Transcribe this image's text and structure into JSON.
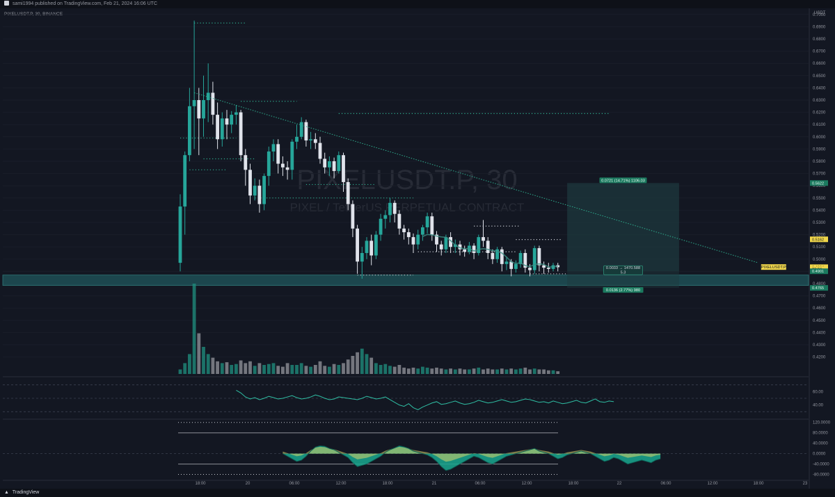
{
  "header": {
    "publisher_text": "sami1994 published on TradingView.com, Feb 21, 2024 16:06 UTC",
    "symbol_line": "PIXELUSDT.P, 30, BINANCE"
  },
  "footer": {
    "brand": "TradingView"
  },
  "watermark": {
    "symbol": "PIXELUSDT.P, 30",
    "description": "PIXEL / TetherUS PERPETUAL CONTRACT"
  },
  "chart_data": {
    "type": "candlestick",
    "price_axis": {
      "unit": "USDT",
      "range": [
        0.405,
        0.705
      ],
      "ticks": [
        0.42,
        0.43,
        0.44,
        0.45,
        0.46,
        0.47,
        0.48,
        0.49,
        0.5,
        0.51,
        0.52,
        0.53,
        0.54,
        0.55,
        0.56,
        0.57,
        0.58,
        0.59,
        0.6,
        0.61,
        0.62,
        0.63,
        0.64,
        0.65,
        0.66,
        0.67,
        0.68,
        0.69,
        0.7
      ]
    },
    "time_axis": {
      "labels": [
        "18:00",
        "20",
        "06:00",
        "12:00",
        "18:00",
        "21",
        "06:00",
        "12:00",
        "18:00",
        "22",
        "06:00",
        "12:00",
        "18:00",
        "23"
      ]
    },
    "candles": [
      [
        0.497,
        0.543,
        0.49,
        0.553
      ],
      [
        0.543,
        0.585,
        0.52,
        0.588
      ],
      [
        0.585,
        0.625,
        0.58,
        0.64
      ],
      [
        0.625,
        0.63,
        0.59,
        0.695
      ],
      [
        0.63,
        0.615,
        0.585,
        0.64
      ],
      [
        0.615,
        0.63,
        0.6,
        0.65
      ],
      [
        0.63,
        0.636,
        0.612,
        0.66
      ],
      [
        0.636,
        0.618,
        0.61,
        0.645
      ],
      [
        0.618,
        0.598,
        0.59,
        0.628
      ],
      [
        0.598,
        0.615,
        0.592,
        0.62
      ],
      [
        0.615,
        0.61,
        0.598,
        0.622
      ],
      [
        0.61,
        0.618,
        0.603,
        0.621
      ],
      [
        0.618,
        0.62,
        0.61,
        0.626
      ],
      [
        0.62,
        0.585,
        0.58,
        0.622
      ],
      [
        0.585,
        0.573,
        0.56,
        0.59
      ],
      [
        0.573,
        0.552,
        0.545,
        0.578
      ],
      [
        0.552,
        0.56,
        0.548,
        0.566
      ],
      [
        0.56,
        0.545,
        0.538,
        0.565
      ],
      [
        0.545,
        0.568,
        0.54,
        0.57
      ],
      [
        0.568,
        0.588,
        0.56,
        0.592
      ],
      [
        0.588,
        0.594,
        0.58,
        0.598
      ],
      [
        0.594,
        0.578,
        0.57,
        0.598
      ],
      [
        0.578,
        0.575,
        0.568,
        0.584
      ],
      [
        0.575,
        0.573,
        0.565,
        0.58
      ],
      [
        0.573,
        0.596,
        0.565,
        0.598
      ],
      [
        0.596,
        0.6,
        0.59,
        0.61
      ],
      [
        0.6,
        0.612,
        0.598,
        0.616
      ],
      [
        0.612,
        0.597,
        0.592,
        0.614
      ],
      [
        0.597,
        0.598,
        0.59,
        0.604
      ],
      [
        0.598,
        0.595,
        0.59,
        0.603
      ],
      [
        0.595,
        0.582,
        0.578,
        0.6
      ],
      [
        0.582,
        0.575,
        0.57,
        0.587
      ],
      [
        0.575,
        0.58,
        0.568,
        0.584
      ],
      [
        0.58,
        0.572,
        0.566,
        0.583
      ],
      [
        0.572,
        0.585,
        0.57,
        0.588
      ],
      [
        0.585,
        0.563,
        0.555,
        0.587
      ],
      [
        0.563,
        0.545,
        0.54,
        0.566
      ],
      [
        0.545,
        0.525,
        0.518,
        0.548
      ],
      [
        0.525,
        0.498,
        0.488,
        0.528
      ],
      [
        0.498,
        0.505,
        0.484,
        0.51
      ],
      [
        0.505,
        0.515,
        0.5,
        0.518
      ],
      [
        0.515,
        0.503,
        0.495,
        0.52
      ],
      [
        0.503,
        0.52,
        0.5,
        0.523
      ],
      [
        0.52,
        0.533,
        0.515,
        0.537
      ],
      [
        0.533,
        0.536,
        0.525,
        0.54
      ],
      [
        0.536,
        0.546,
        0.53,
        0.55
      ],
      [
        0.546,
        0.537,
        0.53,
        0.548
      ],
      [
        0.537,
        0.525,
        0.52,
        0.54
      ],
      [
        0.525,
        0.522,
        0.516,
        0.528
      ],
      [
        0.522,
        0.518,
        0.512,
        0.525
      ],
      [
        0.518,
        0.512,
        0.505,
        0.521
      ],
      [
        0.512,
        0.52,
        0.508,
        0.524
      ],
      [
        0.52,
        0.526,
        0.515,
        0.528
      ],
      [
        0.526,
        0.535,
        0.521,
        0.538
      ],
      [
        0.535,
        0.52,
        0.515,
        0.538
      ],
      [
        0.52,
        0.512,
        0.506,
        0.523
      ],
      [
        0.512,
        0.508,
        0.503,
        0.515
      ],
      [
        0.508,
        0.518,
        0.505,
        0.52
      ],
      [
        0.518,
        0.51,
        0.505,
        0.522
      ],
      [
        0.51,
        0.512,
        0.505,
        0.516
      ],
      [
        0.512,
        0.508,
        0.503,
        0.515
      ],
      [
        0.508,
        0.506,
        0.502,
        0.511
      ],
      [
        0.506,
        0.511,
        0.504,
        0.514
      ],
      [
        0.511,
        0.505,
        0.5,
        0.513
      ],
      [
        0.505,
        0.518,
        0.503,
        0.52
      ],
      [
        0.518,
        0.515,
        0.51,
        0.532
      ],
      [
        0.515,
        0.505,
        0.5,
        0.518
      ],
      [
        0.505,
        0.5,
        0.496,
        0.508
      ],
      [
        0.5,
        0.508,
        0.497,
        0.51
      ],
      [
        0.508,
        0.496,
        0.49,
        0.51
      ],
      [
        0.496,
        0.498,
        0.491,
        0.502
      ],
      [
        0.498,
        0.492,
        0.486,
        0.5
      ],
      [
        0.492,
        0.496,
        0.489,
        0.499
      ],
      [
        0.496,
        0.505,
        0.493,
        0.507
      ],
      [
        0.505,
        0.493,
        0.489,
        0.508
      ],
      [
        0.493,
        0.491,
        0.486,
        0.496
      ],
      [
        0.491,
        0.509,
        0.488,
        0.511
      ],
      [
        0.509,
        0.495,
        0.49,
        0.511
      ],
      [
        0.495,
        0.493,
        0.488,
        0.498
      ],
      [
        0.493,
        0.492,
        0.489,
        0.497
      ],
      [
        0.492,
        0.495,
        0.49,
        0.497
      ],
      [
        0.495,
        0.4934,
        0.49,
        0.497
      ]
    ],
    "volume": [
      0.05,
      0.12,
      0.22,
      1.0,
      0.45,
      0.3,
      0.22,
      0.18,
      0.14,
      0.12,
      0.13,
      0.1,
      0.11,
      0.15,
      0.12,
      0.14,
      0.09,
      0.12,
      0.1,
      0.11,
      0.12,
      0.09,
      0.08,
      0.12,
      0.1,
      0.1,
      0.12,
      0.09,
      0.08,
      0.1,
      0.14,
      0.09,
      0.08,
      0.11,
      0.1,
      0.12,
      0.16,
      0.2,
      0.24,
      0.28,
      0.22,
      0.18,
      0.12,
      0.1,
      0.11,
      0.09,
      0.08,
      0.1,
      0.07,
      0.06,
      0.07,
      0.06,
      0.08,
      0.07,
      0.06,
      0.07,
      0.06,
      0.05,
      0.06,
      0.05,
      0.06,
      0.05,
      0.05,
      0.06,
      0.07,
      0.05,
      0.06,
      0.05,
      0.05,
      0.06,
      0.05,
      0.06,
      0.05,
      0.06,
      0.07,
      0.05,
      0.06,
      0.05,
      0.05,
      0.04,
      0.04,
      0.03
    ],
    "trendline": {
      "from": [
        3,
        0.636
      ],
      "to": [
        124,
        0.497
      ]
    },
    "support_zone": [
      0.4785,
      0.487
    ],
    "horizontal_levels": [
      {
        "y": 0.693,
        "from": 3,
        "to": 14
      },
      {
        "y": 0.629,
        "from": 13,
        "to": 25
      },
      {
        "y": 0.619,
        "from": 34,
        "to": 92
      },
      {
        "y": 0.599,
        "from": 0,
        "to": 12
      },
      {
        "y": 0.582,
        "from": 5,
        "to": 16
      },
      {
        "y": 0.573,
        "from": 2,
        "to": 10
      },
      {
        "y": 0.561,
        "from": 27,
        "to": 42
      },
      {
        "y": 0.55,
        "from": 16,
        "to": 50
      },
      {
        "y": 0.527,
        "from": 63,
        "to": 73
      },
      {
        "y": 0.506,
        "from": 51,
        "to": 72
      },
      {
        "y": 0.516,
        "from": 72,
        "to": 82
      },
      {
        "y": 0.487,
        "from": 38,
        "to": 50
      },
      {
        "y": 0.488,
        "from": 75,
        "to": 83
      }
    ],
    "position": {
      "from_index": 83,
      "to_index": 107,
      "entry": 0.4901,
      "target": 0.5622,
      "stop": 0.4765,
      "target_label": "0.0721 (14.71%) 1106.03",
      "stop_label": "0.0136 (2.77%) 980",
      "mid_label_1": "0.0033 → 1470.588",
      "mid_label_2": "5.3"
    },
    "price_labels": [
      {
        "text": "0.5622",
        "y": 0.5622,
        "style": "green"
      },
      {
        "text": "0.5162",
        "y": 0.5162,
        "style": "yellow"
      },
      {
        "text": "0.4934",
        "y": 0.4934,
        "style": "yellow"
      },
      {
        "text": "23:24",
        "y": 0.4918,
        "style": "yellow-sub"
      },
      {
        "text": "0.4901",
        "y": 0.4901,
        "style": "green"
      },
      {
        "text": "0.4765",
        "y": 0.4765,
        "style": "green"
      }
    ],
    "last_price_tag": "PIXELUSDT.P",
    "rsi": {
      "ticks": [
        "60.00",
        "40.00"
      ],
      "values": [
        62,
        58,
        52,
        49,
        51,
        48,
        50,
        53,
        51,
        49,
        50,
        52,
        54,
        51,
        49,
        50,
        52,
        55,
        53,
        50,
        48,
        49,
        52,
        51,
        50,
        49,
        48,
        50,
        53,
        51,
        49,
        50,
        52,
        48,
        44,
        40,
        38,
        42,
        36,
        33,
        37,
        40,
        43,
        45,
        41,
        42,
        44,
        46,
        43,
        41,
        42,
        44,
        47,
        45,
        43,
        44,
        46,
        48,
        46,
        44,
        45,
        47,
        49,
        48,
        46,
        44,
        45,
        43,
        46,
        44,
        42,
        43,
        45,
        47,
        44,
        43,
        46,
        49,
        45,
        44,
        46,
        45
      ]
    },
    "oscillator": {
      "ticks": [
        "120.0000",
        "80.0000",
        "40.0000",
        "0.0000",
        "-40.0000",
        "-80.0000"
      ],
      "values": [
        0,
        -10,
        -20,
        -30,
        -25,
        -10,
        10,
        25,
        30,
        28,
        20,
        15,
        5,
        -5,
        -15,
        -35,
        -50,
        -45,
        -40,
        -30,
        -20,
        -10,
        5,
        15,
        22,
        30,
        26,
        20,
        10,
        5,
        0,
        -5,
        -15,
        -30,
        -50,
        -65,
        -60,
        -50,
        -40,
        -30,
        -20,
        -10,
        -15,
        -25,
        -35,
        -40,
        -30,
        -20,
        -10,
        -5,
        0,
        5,
        10,
        15,
        20,
        10,
        5,
        0,
        -10,
        -20,
        -15,
        -5,
        0,
        5,
        10,
        5,
        0,
        -10,
        -20,
        -30,
        -25,
        -15,
        -20,
        -30,
        -40,
        -35,
        -30,
        -25,
        -30,
        -35,
        -25,
        -20
      ]
    }
  }
}
